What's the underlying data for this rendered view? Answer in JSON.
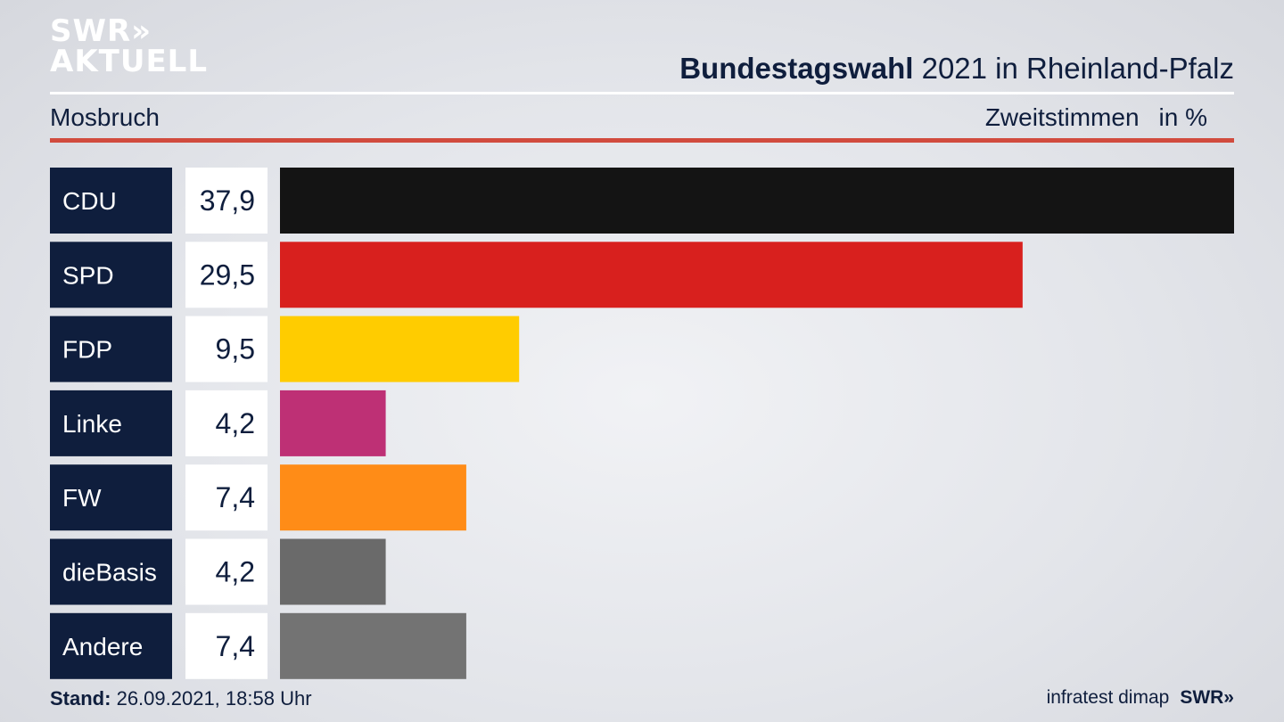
{
  "branding": {
    "logo_line1": "SWR",
    "logo_line1_chevrons": "»",
    "logo_line2": "AKTUELL"
  },
  "header": {
    "title_bold": "Bundestagswahl",
    "title_rest": "2021 in Rheinland-Pfalz",
    "location": "Mosbruch",
    "measure": "Zweitstimmen",
    "unit": "in %"
  },
  "chart_data": {
    "type": "bar",
    "orientation": "horizontal",
    "categories": [
      "CDU",
      "SPD",
      "FDP",
      "Linke",
      "FW",
      "dieBasis",
      "Andere"
    ],
    "values": [
      37.9,
      29.5,
      9.5,
      4.2,
      7.4,
      4.2,
      7.4
    ],
    "value_labels": [
      "37,9",
      "29,5",
      "9,5",
      "4,2",
      "7,4",
      "4,2",
      "7,4"
    ],
    "colors": [
      "#141414",
      "#d8201e",
      "#ffcc00",
      "#be3075",
      "#ff8c17",
      "#6a6a6a",
      "#737373"
    ],
    "xlim": [
      0,
      37.9
    ]
  },
  "footer": {
    "stand_label": "Stand:",
    "stand_value": "26.09.2021, 18:58 Uhr",
    "source": "infratest dimap",
    "brand": "SWR»"
  }
}
